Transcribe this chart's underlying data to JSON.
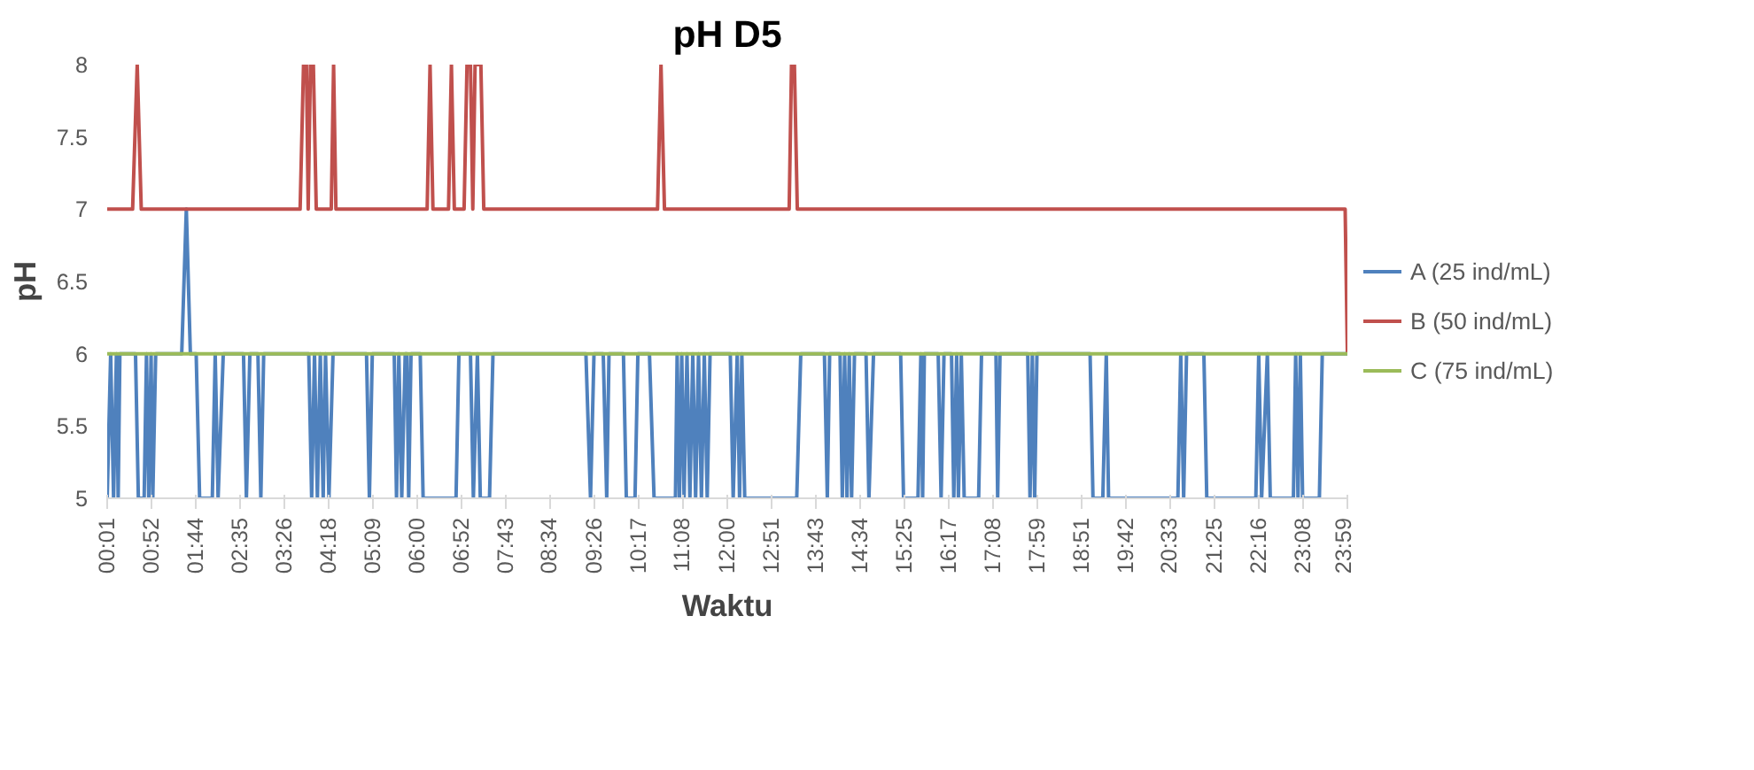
{
  "chart_data": {
    "type": "line",
    "title": "pH D5",
    "xlabel": "Waktu",
    "ylabel": "pH",
    "xlim": [
      0.0167,
      23.9833
    ],
    "ylim": [
      5,
      8
    ],
    "yticks": [
      5,
      5.5,
      6,
      6.5,
      7,
      7.5,
      8
    ],
    "xticks": [
      {
        "value": 0.0167,
        "label": "00:01"
      },
      {
        "value": 0.8667,
        "label": "00:52"
      },
      {
        "value": 1.7333,
        "label": "01:44"
      },
      {
        "value": 2.5833,
        "label": "02:35"
      },
      {
        "value": 3.4333,
        "label": "03:26"
      },
      {
        "value": 4.3,
        "label": "04:18"
      },
      {
        "value": 5.15,
        "label": "05:09"
      },
      {
        "value": 6,
        "label": "06:00"
      },
      {
        "value": 6.8667,
        "label": "06:52"
      },
      {
        "value": 7.7167,
        "label": "07:43"
      },
      {
        "value": 8.5667,
        "label": "08:34"
      },
      {
        "value": 9.4333,
        "label": "09:26"
      },
      {
        "value": 10.2833,
        "label": "10:17"
      },
      {
        "value": 11.1333,
        "label": "11:08"
      },
      {
        "value": 12,
        "label": "12:00"
      },
      {
        "value": 12.85,
        "label": "12:51"
      },
      {
        "value": 13.7167,
        "label": "13:43"
      },
      {
        "value": 14.5667,
        "label": "14:34"
      },
      {
        "value": 15.4167,
        "label": "15:25"
      },
      {
        "value": 16.2833,
        "label": "16:17"
      },
      {
        "value": 17.1333,
        "label": "17:08"
      },
      {
        "value": 17.9833,
        "label": "17:59"
      },
      {
        "value": 18.85,
        "label": "18:51"
      },
      {
        "value": 19.7,
        "label": "19:42"
      },
      {
        "value": 20.55,
        "label": "20:33"
      },
      {
        "value": 21.4167,
        "label": "21:25"
      },
      {
        "value": 22.2667,
        "label": "22:16"
      },
      {
        "value": 23.1333,
        "label": "23:08"
      },
      {
        "value": 23.9833,
        "label": "23:59"
      }
    ],
    "grid": false,
    "legend": "right",
    "marker": "none",
    "line_style": "solid",
    "series": [
      {
        "name": "A (25 ind/mL)",
        "color": "#4f81bd",
        "x": [
          0.017,
          0.084,
          0.14,
          0.195,
          0.229,
          0.262,
          0.564,
          0.619,
          0.731,
          0.776,
          0.82,
          0.865,
          0.898,
          0.954,
          1.457,
          1.546,
          1.624,
          1.736,
          1.803,
          2.048,
          2.104,
          2.16,
          2.26,
          2.651,
          2.707,
          2.774,
          2.93,
          2.986,
          3.041,
          3.912,
          3.968,
          4.023,
          4.079,
          4.135,
          4.191,
          4.236,
          4.302,
          4.381,
          5.028,
          5.084,
          5.14,
          5.564,
          5.608,
          5.653,
          5.709,
          5.776,
          5.809,
          5.843,
          5.888,
          6.066,
          6.122,
          6.758,
          6.814,
          7.037,
          7.093,
          7.171,
          7.227,
          7.405,
          7.472,
          9.268,
          9.357,
          9.424,
          9.603,
          9.67,
          9.714,
          9.993,
          10.049,
          10.217,
          10.272,
          10.496,
          10.585,
          10.998,
          11.031,
          11.076,
          11.12,
          11.165,
          11.221,
          11.277,
          11.333,
          11.388,
          11.444,
          11.5,
          11.556,
          11.612,
          11.667,
          12.058,
          12.114,
          12.192,
          12.237,
          12.281,
          12.337,
          13.342,
          13.42,
          13.877,
          13.933,
          13.978,
          14.179,
          14.223,
          14.268,
          14.313,
          14.357,
          14.402,
          14.458,
          14.681,
          14.737,
          14.826,
          15.35,
          15.406,
          15.685,
          15.741,
          15.775,
          15.808,
          16.076,
          16.132,
          16.188,
          16.333,
          16.377,
          16.433,
          16.466,
          16.522,
          16.578,
          16.857,
          16.913,
          17.192,
          17.225,
          17.27,
          17.806,
          17.85,
          17.895,
          17.94,
          17.984,
          19.011,
          19.067,
          19.257,
          19.324,
          19.368,
          20.708,
          20.763,
          20.819,
          20.875,
          21.21,
          21.266,
          22.214,
          22.27,
          22.326,
          22.437,
          22.493,
          22.94,
          22.984,
          23.029,
          23.074,
          23.118,
          23.442,
          23.498,
          23.983
        ],
        "values": [
          5,
          6,
          5,
          6,
          5,
          6,
          6,
          5,
          5,
          6,
          5,
          6,
          5,
          6,
          6,
          7,
          6,
          6,
          5,
          5,
          6,
          5,
          6,
          6,
          5,
          6,
          6,
          5,
          6,
          6,
          5,
          6,
          5,
          6,
          5,
          6,
          5,
          6,
          6,
          5,
          6,
          6,
          5,
          6,
          5,
          6,
          6,
          5,
          6,
          6,
          5,
          5,
          6,
          6,
          5,
          6,
          5,
          5,
          6,
          6,
          5,
          6,
          6,
          5,
          6,
          6,
          5,
          5,
          6,
          6,
          5,
          5,
          6,
          5,
          6,
          5,
          6,
          5,
          6,
          5,
          6,
          5,
          6,
          5,
          6,
          6,
          5,
          6,
          5,
          6,
          5,
          5,
          6,
          6,
          5,
          6,
          6,
          5,
          6,
          5,
          6,
          5,
          6,
          6,
          5,
          6,
          6,
          5,
          5,
          6,
          5,
          6,
          6,
          5,
          6,
          6,
          5,
          6,
          5,
          6,
          5,
          5,
          6,
          6,
          5,
          6,
          6,
          5,
          6,
          5,
          6,
          6,
          5,
          5,
          6,
          5,
          5,
          6,
          5,
          6,
          6,
          5,
          5,
          6,
          5,
          6,
          5,
          5,
          6,
          5,
          6,
          5,
          5,
          6,
          6
        ]
      },
      {
        "name": "B (50 ind/mL)",
        "color": "#c0504d",
        "x": [
          0.017,
          0.508,
          0.597,
          0.675,
          3.745,
          3.811,
          3.867,
          3.901,
          3.945,
          4.001,
          4.057,
          4.347,
          4.392,
          4.437,
          6.2,
          6.256,
          6.312,
          6.613,
          6.669,
          6.725,
          6.914,
          6.97,
          7.037,
          7.082,
          7.126,
          7.182,
          7.238,
          7.294,
          10.652,
          10.719,
          10.786,
          13.196,
          13.241,
          13.297,
          13.353,
          23.94,
          23.983
        ],
        "values": [
          7,
          7,
          8,
          7,
          7,
          8,
          8,
          7,
          8,
          8,
          7,
          7,
          8,
          7,
          7,
          8,
          7,
          7,
          8,
          7,
          7,
          8,
          8,
          7,
          8,
          8,
          8,
          7,
          7,
          8,
          7,
          7,
          8,
          8,
          7,
          7,
          6
        ]
      },
      {
        "name": "C (75 ind/mL)",
        "color": "#9bbb59",
        "x": [
          0.017,
          23.983
        ],
        "values": [
          6,
          6
        ]
      }
    ]
  }
}
